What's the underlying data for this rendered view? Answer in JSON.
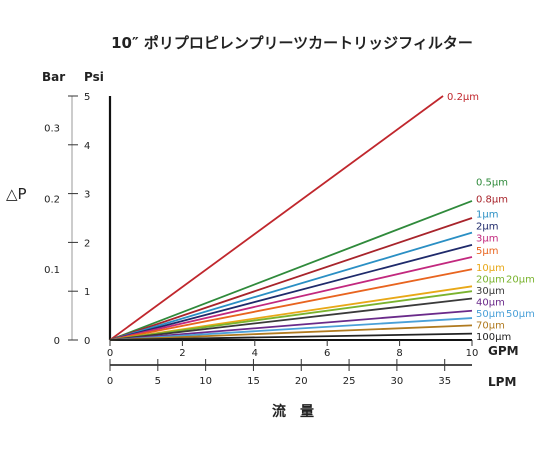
{
  "chart_data": {
    "type": "line",
    "title": "10″ ポリプロピレンプリーツカートリッジフィルター",
    "ylabel": "△P",
    "xlabel": "流　量",
    "ylabel_left_unit": "Bar",
    "ylabel_right_unit": "Psi",
    "xlabel_top_unit": "GPM",
    "xlabel_bottom_unit": "LPM",
    "xlim": [
      0,
      10
    ],
    "ylim": [
      0,
      5
    ],
    "bar_ticks": [
      "0",
      "0.1",
      "0.2",
      "0.3"
    ],
    "bar_tick_values": [
      0,
      0.1,
      0.2,
      0.3
    ],
    "psi_ticks": [
      "0",
      "1",
      "2",
      "3",
      "4",
      "5"
    ],
    "psi_tick_values": [
      0,
      1,
      2,
      3,
      4,
      5
    ],
    "gpm_ticks": [
      "0",
      "2",
      "4",
      "6",
      "8",
      "10"
    ],
    "gpm_tick_values": [
      0,
      2,
      4,
      6,
      8,
      10
    ],
    "lpm_ticks": [
      "0",
      "5",
      "10",
      "15",
      "20",
      "25",
      "30",
      "35"
    ],
    "lpm_tick_values": [
      0,
      5,
      10,
      15,
      20,
      25,
      30,
      35
    ],
    "grid": false,
    "series": [
      {
        "name": "0.2µm",
        "x": [
          0,
          9.2
        ],
        "y": [
          0,
          5.0
        ],
        "color": "#c0272d"
      },
      {
        "name": "0.5µm",
        "x": [
          0,
          10
        ],
        "y": [
          0,
          2.85
        ],
        "color": "#2f8a3b"
      },
      {
        "name": "0.8µm",
        "x": [
          0,
          10
        ],
        "y": [
          0,
          2.5
        ],
        "color": "#a8242b"
      },
      {
        "name": "1µm",
        "x": [
          0,
          10
        ],
        "y": [
          0,
          2.2
        ],
        "color": "#2a8fc4"
      },
      {
        "name": "2µm",
        "x": [
          0,
          10
        ],
        "y": [
          0,
          1.95
        ],
        "color": "#1f2a6b"
      },
      {
        "name": "3µm",
        "x": [
          0,
          10
        ],
        "y": [
          0,
          1.7
        ],
        "color": "#c2287e"
      },
      {
        "name": "5µm",
        "x": [
          0,
          10
        ],
        "y": [
          0,
          1.45
        ],
        "color": "#e8641f"
      },
      {
        "name": "10µm",
        "x": [
          0,
          10
        ],
        "y": [
          0,
          1.1
        ],
        "color": "#e8a817"
      },
      {
        "name": "20µm",
        "x": [
          0,
          10
        ],
        "y": [
          0,
          1.0
        ],
        "color": "#7ab32e"
      },
      {
        "name": "30µm",
        "x": [
          0,
          10
        ],
        "y": [
          0,
          0.85
        ],
        "color": "#3a3a3a"
      },
      {
        "name": "40µm",
        "x": [
          0,
          10
        ],
        "y": [
          0,
          0.6
        ],
        "color": "#6a2a8a"
      },
      {
        "name": "50µm",
        "x": [
          0,
          10
        ],
        "y": [
          0,
          0.45
        ],
        "color": "#4aa0d8"
      },
      {
        "name": "70µm",
        "x": [
          0,
          10
        ],
        "y": [
          0,
          0.3
        ],
        "color": "#b07a1f"
      },
      {
        "name": "100µm",
        "x": [
          0,
          10
        ],
        "y": [
          0,
          0.13
        ],
        "color": "#222222"
      }
    ],
    "brackets": [
      {
        "label": "20µm",
        "color": "#7ab32e"
      },
      {
        "label": "50µm",
        "color": "#4aa0d8"
      }
    ]
  }
}
